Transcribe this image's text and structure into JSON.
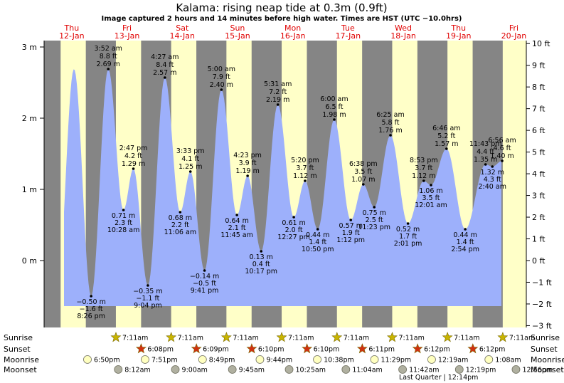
{
  "title": "Kalama: rising  neap tide at 0.3m (0.9ft)",
  "subtitle": "Image captured 2 hours and 14 minutes before high water. Times are HST (UTC −10.0hrs)",
  "colors": {
    "water": "#9db0fb",
    "night": "#858585",
    "day": "#ffffc8",
    "axis": "#000000",
    "date": "#e00000"
  },
  "chart_data": {
    "type": "area",
    "title": "Kalama: rising  neap tide at 0.3m (0.9ft)",
    "days": [
      {
        "dow": "Thu",
        "date": "12-Jan"
      },
      {
        "dow": "Fri",
        "date": "13-Jan"
      },
      {
        "dow": "Sat",
        "date": "14-Jan"
      },
      {
        "dow": "Sun",
        "date": "15-Jan"
      },
      {
        "dow": "Mon",
        "date": "16-Jan"
      },
      {
        "dow": "Tue",
        "date": "17-Jan"
      },
      {
        "dow": "Wed",
        "date": "18-Jan"
      },
      {
        "dow": "Thu",
        "date": "19-Jan"
      },
      {
        "dow": "Fri",
        "date": "20-Jan"
      }
    ],
    "y_left": {
      "unit": "m",
      "range": [
        -0.9,
        3.0
      ],
      "ticks": [
        "3 m",
        "2 m",
        "1 m",
        "0 m"
      ]
    },
    "y_right": {
      "unit": "ft",
      "ticks": [
        "10 ft",
        "9 ft",
        "8 ft",
        "7 ft",
        "6 ft",
        "5 ft",
        "4 ft",
        "3 ft",
        "2 ft",
        "1 ft",
        "0 ft",
        "−1 ft",
        "−2 ft",
        "−3 ft"
      ]
    },
    "tides": [
      {
        "day": 0,
        "t": 20.43,
        "type": "low",
        "time": "8:26 pm",
        "m": "−0.50 m",
        "ft": "−1.6 ft",
        "h": -0.5
      },
      {
        "day": 1,
        "t": 3.87,
        "type": "high",
        "time": "3:52 am",
        "m": "2.69 m",
        "ft": "8.8 ft",
        "h": 2.69
      },
      {
        "day": 1,
        "t": 10.47,
        "type": "low",
        "time": "10:28 am",
        "m": "0.71 m",
        "ft": "2.3 ft",
        "h": 0.71
      },
      {
        "day": 1,
        "t": 14.78,
        "type": "high",
        "time": "2:47 pm",
        "m": "1.29 m",
        "ft": "4.2 ft",
        "h": 1.29
      },
      {
        "day": 1,
        "t": 21.07,
        "type": "low",
        "time": "9:04 pm",
        "m": "−0.35 m",
        "ft": "−1.1 ft",
        "h": -0.35
      },
      {
        "day": 2,
        "t": 4.45,
        "type": "high",
        "time": "4:27 am",
        "m": "2.57 m",
        "ft": "8.4 ft",
        "h": 2.57
      },
      {
        "day": 2,
        "t": 11.1,
        "type": "low",
        "time": "11:06 am",
        "m": "0.68 m",
        "ft": "2.2 ft",
        "h": 0.68
      },
      {
        "day": 2,
        "t": 15.55,
        "type": "high",
        "time": "3:33 pm",
        "m": "1.25 m",
        "ft": "4.1 ft",
        "h": 1.25
      },
      {
        "day": 2,
        "t": 21.68,
        "type": "low",
        "time": "9:41 pm",
        "m": "−0.14 m",
        "ft": "−0.5 ft",
        "h": -0.14
      },
      {
        "day": 3,
        "t": 5.0,
        "type": "high",
        "time": "5:00 am",
        "m": "2.40 m",
        "ft": "7.9 ft",
        "h": 2.4
      },
      {
        "day": 3,
        "t": 11.75,
        "type": "low",
        "time": "11:45 am",
        "m": "0.64 m",
        "ft": "2.1 ft",
        "h": 0.64
      },
      {
        "day": 3,
        "t": 16.38,
        "type": "high",
        "time": "4:23 pm",
        "m": "1.19 m",
        "ft": "3.9 ft",
        "h": 1.19
      },
      {
        "day": 3,
        "t": 22.28,
        "type": "low",
        "time": "10:17 pm",
        "m": "0.13 m",
        "ft": "0.4 ft",
        "h": 0.13
      },
      {
        "day": 4,
        "t": 5.52,
        "type": "high",
        "time": "5:31 am",
        "m": "2.19 m",
        "ft": "7.2 ft",
        "h": 2.19
      },
      {
        "day": 4,
        "t": 12.45,
        "type": "low",
        "time": "12:27 pm",
        "m": "0.61 m",
        "ft": "2.0 ft",
        "h": 0.61
      },
      {
        "day": 4,
        "t": 17.33,
        "type": "high",
        "time": "5:20 pm",
        "m": "1.12 m",
        "ft": "3.7 ft",
        "h": 1.12
      },
      {
        "day": 4,
        "t": 22.83,
        "type": "low",
        "time": "10:50 pm",
        "m": "0.44 m",
        "ft": "1.4 ft",
        "h": 0.44
      },
      {
        "day": 5,
        "t": 6.0,
        "type": "high",
        "time": "6:00 am",
        "m": "1.98 m",
        "ft": "6.5 ft",
        "h": 1.98
      },
      {
        "day": 5,
        "t": 13.2,
        "type": "low",
        "time": "1:12 pm",
        "m": "0.57 m",
        "ft": "1.9 ft",
        "h": 0.57
      },
      {
        "day": 5,
        "t": 18.63,
        "type": "high",
        "time": "6:38 pm",
        "m": "1.07 m",
        "ft": "3.5 ft",
        "h": 1.07
      },
      {
        "day": 5,
        "t": 23.38,
        "type": "low",
        "time": "11:23 pm",
        "m": "0.75 m",
        "ft": "2.5 ft",
        "h": 0.75
      },
      {
        "day": 6,
        "t": 6.42,
        "type": "high",
        "time": "6:25 am",
        "m": "1.76 m",
        "ft": "5.8 ft",
        "h": 1.76
      },
      {
        "day": 6,
        "t": 14.02,
        "type": "low",
        "time": "2:01 pm",
        "m": "0.52 m",
        "ft": "1.7 ft",
        "h": 0.52
      },
      {
        "day": 6,
        "t": 20.88,
        "type": "high",
        "time": "8:53 pm",
        "m": "1.12 m",
        "ft": "3.7 ft",
        "h": 1.12
      },
      {
        "day": 7,
        "t": 0.02,
        "type": "low",
        "time": "12:01 am",
        "m": "1.06 m",
        "ft": "3.5 ft",
        "h": 1.06
      },
      {
        "day": 7,
        "t": 6.77,
        "type": "high",
        "time": "6:46 am",
        "m": "1.57 m",
        "ft": "5.2 ft",
        "h": 1.57
      },
      {
        "day": 7,
        "t": 14.9,
        "type": "low",
        "time": "2:54 pm",
        "m": "0.44 m",
        "ft": "1.4 ft",
        "h": 0.44
      },
      {
        "day": 7,
        "t": 23.72,
        "type": "high",
        "time": "11:43 pm",
        "m": "1.35 m",
        "ft": "4.4 ft",
        "h": 1.35
      },
      {
        "day": 8,
        "t": 2.67,
        "type": "low",
        "time": "2:40 am",
        "m": "1.32 m",
        "ft": "4.3 ft",
        "h": 1.32
      },
      {
        "day": 8,
        "t": 6.93,
        "type": "high",
        "time": "6:56 am",
        "m": "1.40 m",
        "ft": "4.6 ft",
        "h": 1.4
      }
    ],
    "sun": {
      "sunrise_hour": 7.18,
      "sunset_hour": 18.12
    }
  },
  "rows": {
    "sunrise_label": "Sunrise",
    "sunset_label": "Sunset",
    "moonrise_label": "Moonrise",
    "moonset_label": "Moonset",
    "sunrise": [
      {
        "day": 1,
        "time": "7:11am"
      },
      {
        "day": 2,
        "time": "7:11am"
      },
      {
        "day": 3,
        "time": "7:11am"
      },
      {
        "day": 4,
        "time": "7:11am"
      },
      {
        "day": 5,
        "time": "7:11am"
      },
      {
        "day": 6,
        "time": "7:11am"
      },
      {
        "day": 7,
        "time": "7:11am"
      },
      {
        "day": 8,
        "time": "7:11am"
      }
    ],
    "sunset": [
      {
        "day": 1,
        "time": "6:08pm"
      },
      {
        "day": 2,
        "time": "6:09pm"
      },
      {
        "day": 3,
        "time": "6:10pm"
      },
      {
        "day": 4,
        "time": "6:10pm"
      },
      {
        "day": 5,
        "time": "6:11pm"
      },
      {
        "day": 6,
        "time": "6:12pm"
      },
      {
        "day": 7,
        "time": "6:12pm"
      }
    ],
    "moonrise": [
      {
        "day": 0,
        "time": "6:50pm"
      },
      {
        "day": 1,
        "time": "7:51pm"
      },
      {
        "day": 2,
        "time": "8:49pm"
      },
      {
        "day": 3,
        "time": "9:44pm"
      },
      {
        "day": 4,
        "time": "10:38pm"
      },
      {
        "day": 5,
        "time": "11:29pm"
      },
      {
        "day": 7,
        "time": "12:19am"
      },
      {
        "day": 8,
        "time": "1:08am"
      }
    ],
    "moonset": [
      {
        "day": 1,
        "time": "8:12am"
      },
      {
        "day": 2,
        "time": "9:00am"
      },
      {
        "day": 3,
        "time": "9:45am"
      },
      {
        "day": 4,
        "time": "10:25am"
      },
      {
        "day": 5,
        "time": "11:04am"
      },
      {
        "day": 6,
        "time": "11:42am"
      },
      {
        "day": 7,
        "time": "12:19pm"
      },
      {
        "day": 8,
        "time": "12:56pm"
      }
    ],
    "moon_phase": "Last Quarter | 12:14pm"
  }
}
